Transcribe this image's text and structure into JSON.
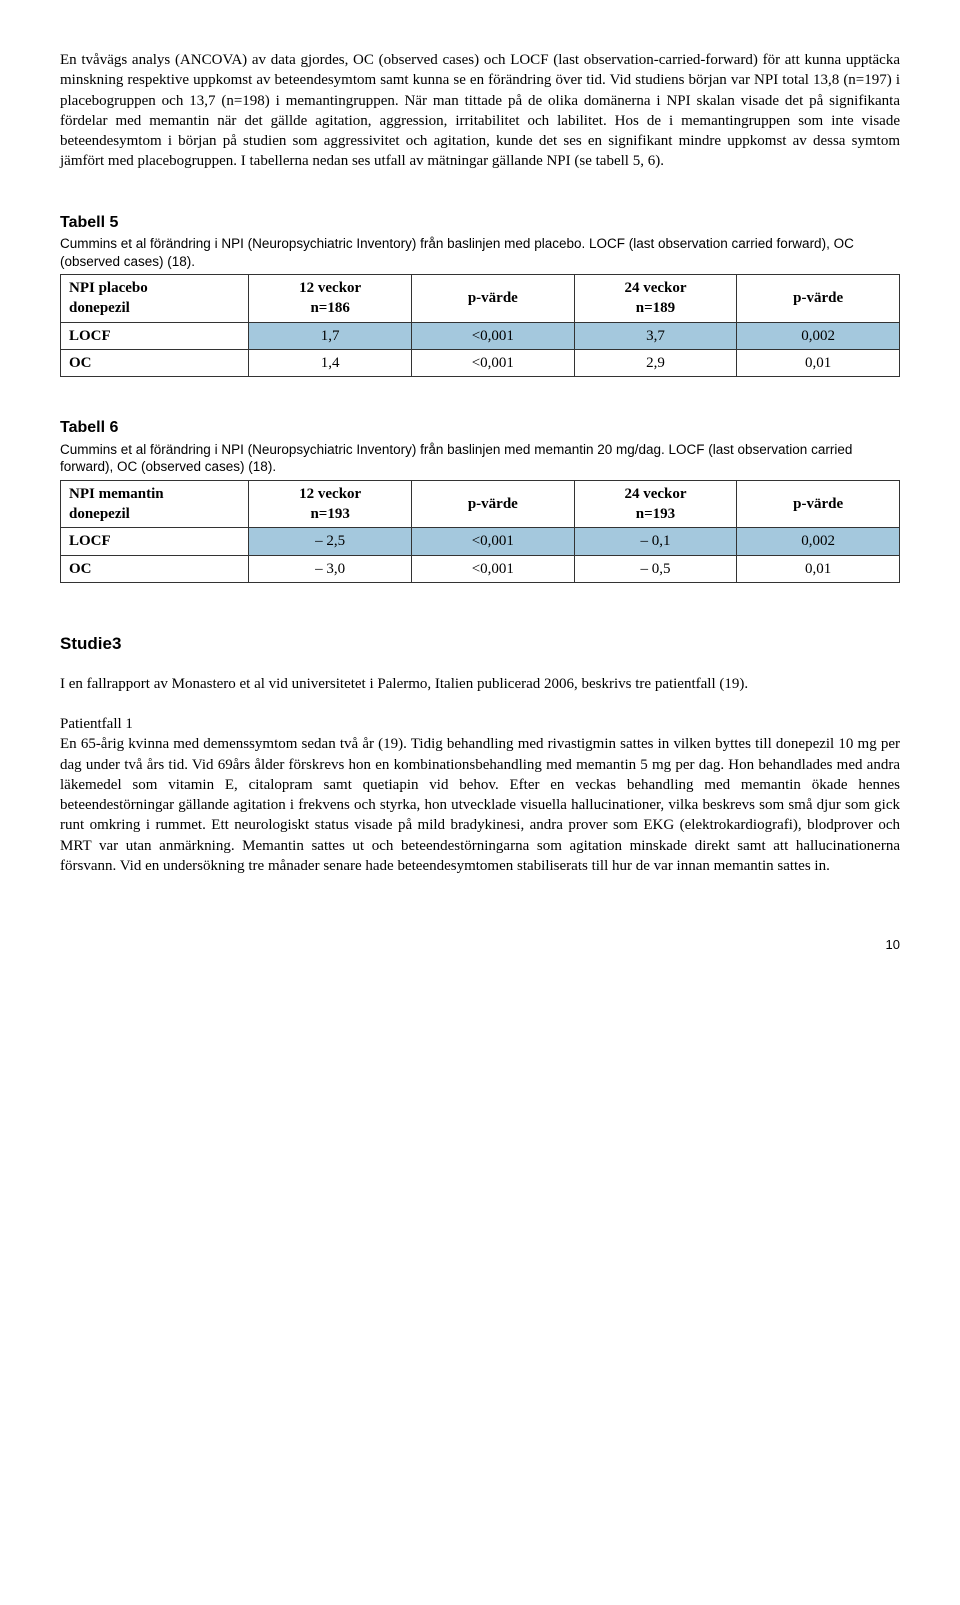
{
  "intro_para": "En tvåvägs analys (ANCOVA) av data gjordes, OC (observed cases) och LOCF (last observation-carried-forward) för att kunna upptäcka minskning respektive uppkomst av beteendesymtom samt kunna se en förändring över tid. Vid studiens början var NPI total 13,8 (n=197) i placebogruppen och 13,7 (n=198) i memantingruppen. När man tittade på de olika domänerna i NPI skalan visade det på signifikanta fördelar med memantin när det gällde agitation, aggression, irritabilitet och labilitet. Hos de i memantingruppen som inte visade beteendesymtom i början på studien som aggressivitet och agitation, kunde det ses en signifikant mindre uppkomst av dessa symtom jämfört med placebogruppen. I tabellerna nedan ses utfall av mätningar gällande NPI (se tabell 5, 6).",
  "table5": {
    "title": "Tabell 5",
    "caption": "Cummins et al förändring i NPI (Neuropsychiatric Inventory) från baslinjen med placebo. LOCF (last observation carried forward), OC (observed cases) (18).",
    "headers": {
      "c1a": "NPI placebo",
      "c1b": "donepezil",
      "c2a": "12 veckor",
      "c2b": "n=186",
      "c3": "p-värde",
      "c4a": "24 veckor",
      "c4b": "n=189",
      "c5": "p-värde"
    },
    "row1": {
      "label": "LOCF",
      "v1": "1,7",
      "v2": "<0,001",
      "v3": "3,7",
      "v4": "0,002"
    },
    "row2": {
      "label": "OC",
      "v1": "1,4",
      "v2": "<0,001",
      "v3": "2,9",
      "v4": "0,01"
    },
    "shaded_bg": "#a4c8dd",
    "border_color": "#333333"
  },
  "table6": {
    "title": "Tabell 6",
    "caption": "Cummins et al förändring i NPI (Neuropsychiatric Inventory) från baslinjen med memantin 20 mg/dag. LOCF (last observation carried forward), OC (observed cases) (18).",
    "headers": {
      "c1a": "NPI memantin",
      "c1b": "donepezil",
      "c2a": "12 veckor",
      "c2b": "n=193",
      "c3": "p-värde",
      "c4a": "24 veckor",
      "c4b": "n=193",
      "c5": "p-värde"
    },
    "row1": {
      "label": "LOCF",
      "v1": "– 2,5",
      "v2": "<0,001",
      "v3": "– 0,1",
      "v4": "0,002"
    },
    "row2": {
      "label": "OC",
      "v1": "– 3,0",
      "v2": "<0,001",
      "v3": "– 0,5",
      "v4": "0,01"
    }
  },
  "studie3": {
    "title": "Studie3",
    "intro": "I en fallrapport av Monastero et al vid universitetet i Palermo, Italien publicerad 2006, beskrivs tre patientfall (19).",
    "patient_title": "Patientfall 1",
    "patient_body": "En 65-årig kvinna med demenssymtom sedan två år (19). Tidig behandling med rivastigmin sattes in vilken byttes till donepezil 10 mg per dag under två års tid. Vid 69års ålder förskrevs hon en kombinationsbehandling med memantin 5 mg per dag. Hon behandlades med andra läkemedel som vitamin E, citalopram samt quetiapin vid behov. Efter en veckas behandling med memantin ökade hennes beteendestörningar gällande agitation i frekvens och styrka, hon utvecklade visuella hallucinationer, vilka beskrevs som små djur som gick runt omkring i rummet. Ett neurologiskt status visade på mild bradykinesi, andra prover som EKG (elektrokardiografi), blodprover och MRT var utan anmärkning. Memantin sattes ut och beteendestörningarna som agitation minskade direkt samt att hallucinationerna försvann. Vid en undersökning tre månader senare hade beteendesymtomen stabiliserats till hur de var innan memantin sattes in."
  },
  "page_number": "10"
}
